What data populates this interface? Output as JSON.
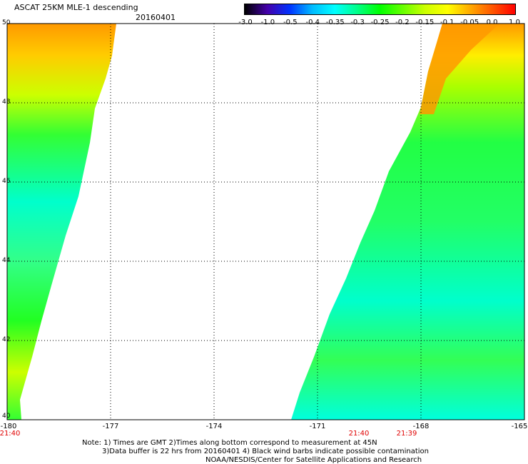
{
  "header": {
    "title": "ASCAT 25KM MLE-1 descending",
    "date": "20160401"
  },
  "colorbar": {
    "ticks": [
      "-3.0",
      "-1.0",
      "-0.5",
      "-0.4",
      "-0.35",
      "-0.3",
      "-0.25",
      "-0.2",
      "-0.15",
      "-0.1",
      "-0.05",
      "0.0",
      "1.0"
    ],
    "colors": [
      "#000000",
      "#4400aa",
      "#0033ff",
      "#00bbff",
      "#00ffff",
      "#00ff88",
      "#00ff00",
      "#66ff00",
      "#ccff00",
      "#ffff00",
      "#ffaa00",
      "#ff5500",
      "#ff0000"
    ]
  },
  "map": {
    "lon_labels": [
      "-180",
      "-177",
      "-174",
      "-171",
      "-168",
      "-165"
    ],
    "lat_labels": [
      "50",
      "48",
      "46",
      "44",
      "42",
      "40"
    ],
    "lon_range": [
      -180,
      -165
    ],
    "lat_range": [
      40,
      50
    ]
  },
  "times": [
    "21:40",
    "21:40",
    "21:39"
  ],
  "notes": [
    "Note: 1) Times are GMT 2)Times along bottom correspond to measurement at 45N",
    "3)Data buffer is 22 hrs from 20160401 4) Black wind barbs indicate possible contamination",
    "NOAA/NESDIS/Center for Satellite Applications and Research"
  ],
  "colors": {
    "swath_orange": "#ff9900",
    "swath_yellow": "#ffff00",
    "swath_green": "#00ff44",
    "swath_cyan": "#00ffdd",
    "grid": "#000000",
    "time_label": "#e00000"
  }
}
